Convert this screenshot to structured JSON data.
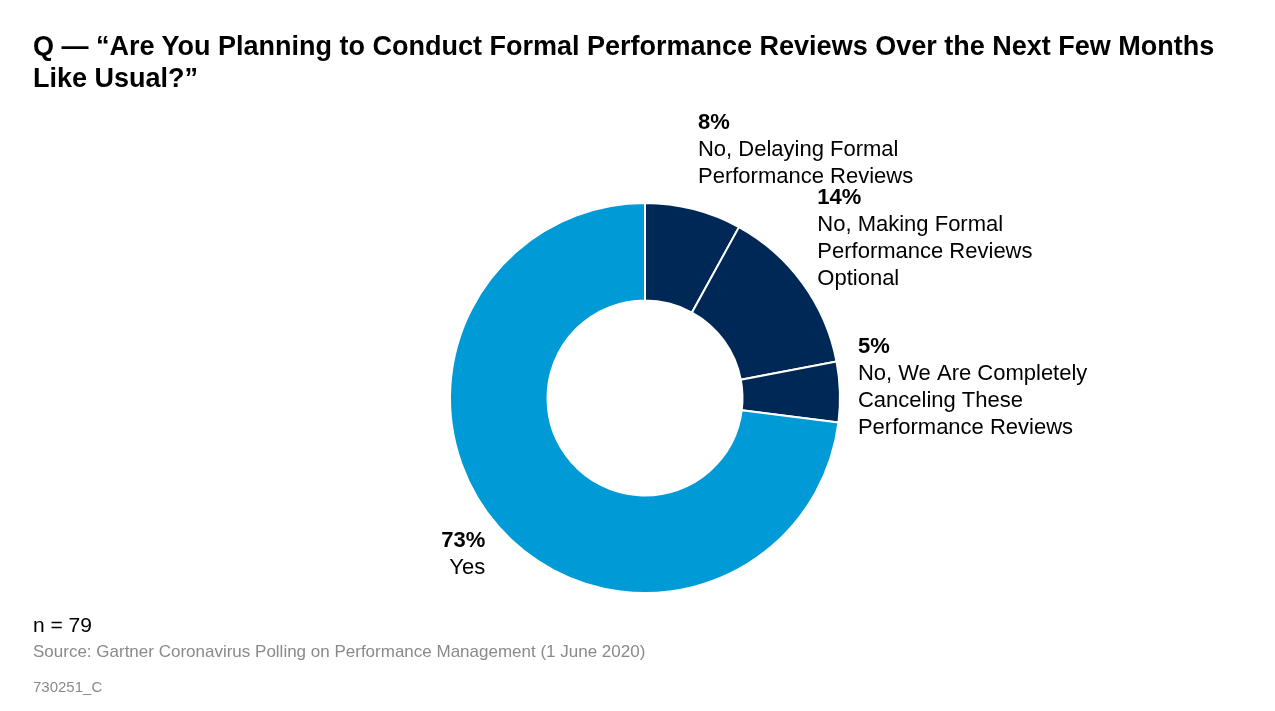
{
  "chart_data": {
    "type": "doughnut",
    "title": "Q — “Are You Planning to Conduct Formal Performance Reviews Over the Next Few Months Like Usual?”",
    "categories": [
      "No, Delaying Formal Performance Reviews",
      "No, Making Formal Performance Reviews Optional",
      "No, We Are Completely Canceling These Performance Reviews",
      "Yes"
    ],
    "values": [
      8,
      14,
      5,
      73
    ],
    "value_labels": [
      "8%",
      "14%",
      "5%",
      "73%"
    ],
    "colors": [
      "#002856",
      "#002856",
      "#002856",
      "#009ad7"
    ],
    "data_labels": true,
    "legend": false,
    "annotations": [
      "n = 79",
      "Source: Gartner Coronavirus Polling on Performance Management (1 June 2020)",
      "730251_C"
    ]
  }
}
